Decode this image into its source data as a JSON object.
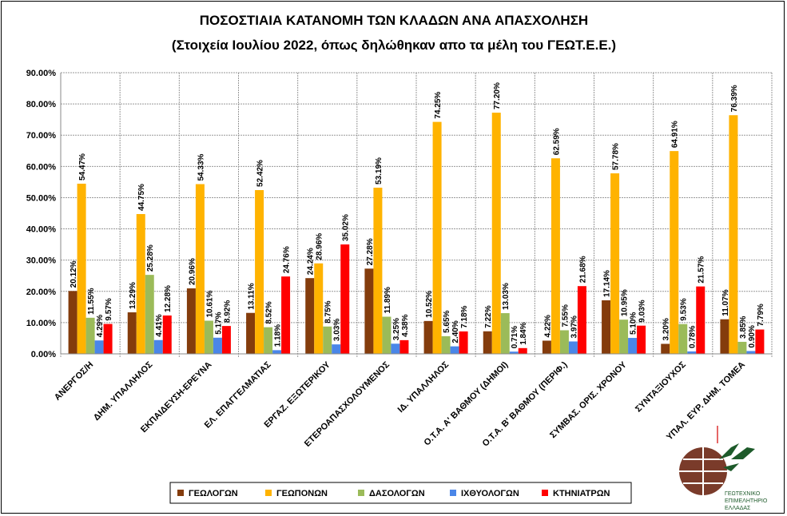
{
  "chart_data": {
    "type": "bar",
    "title": "ΠΟΣΟΣΤΙΑΙΑ ΚΑΤΑΝΟΜΗ ΤΩΝ ΚΛΑΔΩΝ ΑΝΑ ΑΠΑΣΧΟΛΗΣΗ",
    "subtitle": "(Στοιχεία Ιουλίου 2022, όπως δηλώθηκαν απο τα μέλη του ΓΕΩΤ.Ε.Ε.)",
    "xlabel": "",
    "ylabel": "",
    "ylim": [
      0,
      90
    ],
    "yticks": [
      "0.00%",
      "10.00%",
      "20.00%",
      "30.00%",
      "40.00%",
      "50.00%",
      "60.00%",
      "70.00%",
      "80.00%",
      "90.00%"
    ],
    "grid": true,
    "legend_position": "bottom",
    "categories": [
      "ΑΝΕΡΓΟΣ/Η",
      "ΔΗΜ. ΥΠΑΛΛΗΛΟΣ",
      "ΕΚΠΑΙΔΕΥΣΗ-ΕΡΕΥΝΑ",
      "ΕΛ. ΕΠΑΓΓΕΛΜΑΤΙΑΣ",
      "ΕΡΓΑΖ. ΕΞΩΤΕΡΙΚΟΥ",
      "ΕΤΕΡΟΑΠΑΣΧΟΛΟΥΜΕΝΟΣ",
      "ΙΔ. ΥΠΑΛΛΗΛΟΣ",
      "Ο.Τ.Α. Α' ΒΑΘΜΟΥ (ΔΗΜΟΙ)",
      "Ο.Τ.Α. Β' ΒΑΘΜΟΥ (ΠΕΡΙΦ.)",
      "ΣΥΜΒΑΣ. ΟΡΙΣ. ΧΡΟΝΟΥ",
      "ΣΥΝΤΑΞΙΟΥΧΟΣ",
      "ΥΠΑΛ. ΕΥΡ. ΔΗΜ. ΤΟΜΕΑ"
    ],
    "series": [
      {
        "name": "ΓΕΩΛΟΓΩΝ",
        "color": "#843C0C",
        "values": [
          20.12,
          13.29,
          20.96,
          13.11,
          24.24,
          27.28,
          10.52,
          7.22,
          4.22,
          17.14,
          3.2,
          11.07
        ]
      },
      {
        "name": "ΓΕΩΠΟΝΩΝ",
        "color": "#FFB300",
        "values": [
          54.47,
          44.75,
          54.33,
          52.42,
          28.96,
          53.19,
          74.25,
          77.2,
          62.59,
          57.78,
          64.91,
          76.39
        ]
      },
      {
        "name": "ΔΑΣΟΛΟΓΩΝ",
        "color": "#9BBB59",
        "values": [
          11.55,
          25.28,
          10.61,
          8.52,
          8.75,
          11.89,
          5.65,
          13.03,
          7.55,
          10.95,
          9.53,
          3.85
        ]
      },
      {
        "name": "ΙΧΘΥΟΛΟΓΩΝ",
        "color": "#4A86E8",
        "values": [
          4.29,
          4.41,
          5.17,
          1.18,
          3.03,
          3.25,
          2.4,
          0.71,
          3.97,
          5.1,
          0.78,
          0.9
        ]
      },
      {
        "name": "ΚΤΗΝΙΑΤΡΩΝ",
        "color": "#FF0000",
        "values": [
          9.57,
          12.28,
          8.92,
          24.76,
          35.02,
          4.38,
          7.18,
          1.84,
          21.68,
          9.03,
          21.57,
          7.79
        ]
      }
    ]
  },
  "logo": {
    "text": [
      "ΓΕΩΤΕΧΝΙΚΟ",
      "ΕΠΙΜΕΛΗΤΗΡΙΟ",
      "ΕΛΛΑΔΑΣ"
    ]
  }
}
